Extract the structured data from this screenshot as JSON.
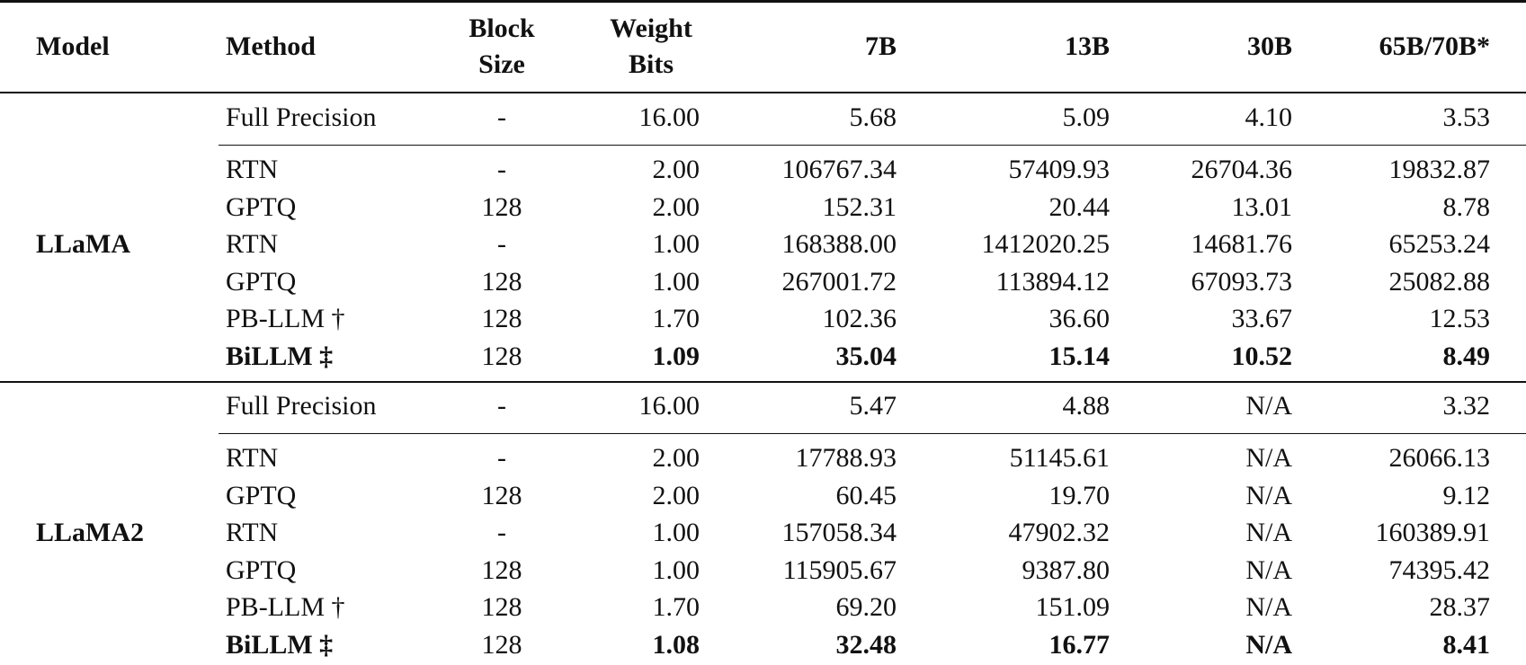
{
  "table": {
    "header": [
      "Model",
      "Method",
      "Block Size",
      "Weight Bits",
      "7B",
      "13B",
      "30B",
      "65B/70B*"
    ],
    "groups": [
      {
        "model": "LLaMA",
        "rows": [
          [
            "Full Precision",
            "-",
            "16.00",
            "5.68",
            "5.09",
            "4.10",
            "3.53"
          ],
          [
            "RTN",
            "-",
            "2.00",
            "106767.34",
            "57409.93",
            "26704.36",
            "19832.87"
          ],
          [
            "GPTQ",
            "128",
            "2.00",
            "152.31",
            "20.44",
            "13.01",
            "8.78"
          ],
          [
            "RTN",
            "-",
            "1.00",
            "168388.00",
            "1412020.25",
            "14681.76",
            "65253.24"
          ],
          [
            "GPTQ",
            "128",
            "1.00",
            "267001.72",
            "113894.12",
            "67093.73",
            "25082.88"
          ],
          [
            "PB-LLM †",
            "128",
            "1.70",
            "102.36",
            "36.60",
            "33.67",
            "12.53"
          ],
          [
            "BiLLM ‡",
            "128",
            "1.09",
            "35.04",
            "15.14",
            "10.52",
            "8.49"
          ]
        ]
      },
      {
        "model": "LLaMA2",
        "rows": [
          [
            "Full Precision",
            "-",
            "16.00",
            "5.47",
            "4.88",
            "N/A",
            "3.32"
          ],
          [
            "RTN",
            "-",
            "2.00",
            "17788.93",
            "51145.61",
            "N/A",
            "26066.13"
          ],
          [
            "GPTQ",
            "128",
            "2.00",
            "60.45",
            "19.70",
            "N/A",
            "9.12"
          ],
          [
            "RTN",
            "-",
            "1.00",
            "157058.34",
            "47902.32",
            "N/A",
            "160389.91"
          ],
          [
            "GPTQ",
            "128",
            "1.00",
            "115905.67",
            "9387.80",
            "N/A",
            "74395.42"
          ],
          [
            "PB-LLM †",
            "128",
            "1.70",
            "69.20",
            "151.09",
            "N/A",
            "28.37"
          ],
          [
            "BiLLM ‡",
            "128",
            "1.08",
            "32.48",
            "16.77",
            "N/A",
            "8.41"
          ]
        ]
      }
    ]
  }
}
